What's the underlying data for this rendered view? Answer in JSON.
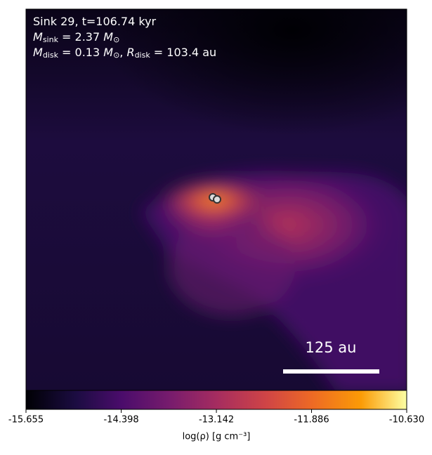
{
  "chart_data": {
    "type": "image",
    "annotation_lines": [
      [
        {
          "text": "Sink 29, t=106.74 kyr"
        }
      ],
      [
        {
          "text": "M",
          "italic": true
        },
        {
          "text": "sink",
          "sub": true
        },
        {
          "text": " = 2.37 "
        },
        {
          "text": "M",
          "italic": true
        },
        {
          "text": "⊙",
          "sub": true
        }
      ],
      [
        {
          "text": "M",
          "italic": true
        },
        {
          "text": "disk",
          "sub": true
        },
        {
          "text": " = 0.13 "
        },
        {
          "text": "M",
          "italic": true
        },
        {
          "text": "⊙",
          "sub": true
        },
        {
          "text": ", "
        },
        {
          "text": "R",
          "italic": true
        },
        {
          "text": "disk",
          "sub": true
        },
        {
          "text": " = 103.4 au"
        }
      ]
    ],
    "scale_bar_label": "125 au",
    "colorbar": {
      "label": "log(ρ) [g cm⁻³]",
      "lim": [
        -15.655,
        -10.63
      ],
      "ticks": [
        -15.655,
        -14.398,
        -13.142,
        -11.886,
        {
          "value": -10.63,
          "label": "-10.630"
        }
      ],
      "colormap": "inferno"
    }
  }
}
